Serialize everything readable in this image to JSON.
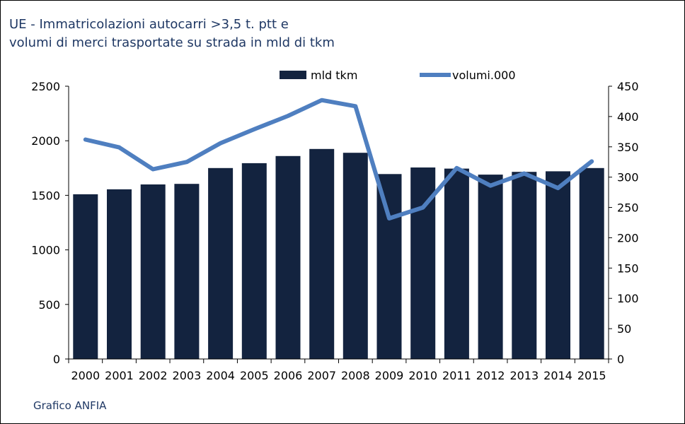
{
  "header": {
    "title_line1": "UE - Immatricolazioni autocarri >3,5 t. ptt e",
    "title_line2": "volumi di merci trasportate su strada in mld di tkm"
  },
  "footer": {
    "text": "Grafico ANFIA"
  },
  "colors": {
    "bar": "#13233f",
    "line": "#4f7fc0",
    "title": "#1f3864"
  },
  "chart_data": {
    "type": "bar",
    "title": "UE - Immatricolazioni autocarri >3,5 t. ptt e volumi di merci trasportate su strada in mld di tkm",
    "categories": [
      "2000",
      "2001",
      "2002",
      "2003",
      "2004",
      "2005",
      "2006",
      "2007",
      "2008",
      "2009",
      "2010",
      "2011",
      "2012",
      "2013",
      "2014",
      "2015"
    ],
    "series": [
      {
        "name": "mld tkm",
        "type": "bar",
        "axis": "left",
        "values": [
          1510,
          1555,
          1600,
          1605,
          1750,
          1795,
          1860,
          1925,
          1890,
          1695,
          1755,
          1745,
          1690,
          1715,
          1720,
          1750
        ]
      },
      {
        "name": "volumi.000",
        "type": "line",
        "axis": "right",
        "values": [
          362,
          349,
          313,
          325,
          356,
          379,
          401,
          427,
          417,
          232,
          250,
          315,
          286,
          306,
          282,
          326
        ]
      }
    ],
    "y_left": {
      "min": 0,
      "max": 2500,
      "ticks": [
        0,
        500,
        1000,
        1500,
        2000,
        2500
      ]
    },
    "y_right": {
      "min": 0,
      "max": 450,
      "ticks": [
        0,
        50,
        100,
        150,
        200,
        250,
        300,
        350,
        400,
        450
      ]
    },
    "legend_position": "top",
    "grid": false
  }
}
